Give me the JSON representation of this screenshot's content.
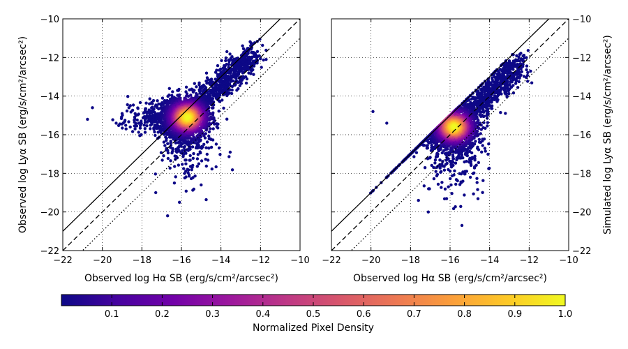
{
  "chart_data": [
    {
      "type": "scatter",
      "panel": "left",
      "xlabel": "Observed log Hα SB (erg/s/cm²/arcsec²)",
      "ylabel": "Observed log Lyα SB (erg/s/cm²/arcsec²)",
      "xlim": [
        -22,
        -10
      ],
      "ylim": [
        -22,
        -10
      ],
      "xticks": [
        -22,
        -20,
        -18,
        -16,
        -14,
        -12,
        -10
      ],
      "yticks": [
        -22,
        -20,
        -18,
        -16,
        -14,
        -12,
        -10
      ],
      "xtick_labels": [
        "−22",
        "−20",
        "−18",
        "−16",
        "−14",
        "−12",
        "−10"
      ],
      "ytick_labels": [
        "−22",
        "−20",
        "−18",
        "−16",
        "−14",
        "−12",
        "−10"
      ],
      "grid": true,
      "reference_lines": [
        {
          "style": "solid",
          "intercept": 1.0
        },
        {
          "style": "dashed",
          "intercept": 0.0
        },
        {
          "style": "dotted",
          "intercept": -1.0
        }
      ],
      "density_peak": {
        "x": -15.7,
        "y": -15.1
      },
      "outliers": [
        {
          "x": -20.5,
          "y": -14.6
        },
        {
          "x": -16.7,
          "y": -20.2
        },
        {
          "x": -16.1,
          "y": -19.5
        },
        {
          "x": -18.3,
          "y": -15.0
        },
        {
          "x": -12.8,
          "y": -12.3
        },
        {
          "x": -18.8,
          "y": -15.7
        },
        {
          "x": -17.3,
          "y": -19.0
        },
        {
          "x": -15.0,
          "y": -18.6
        }
      ]
    },
    {
      "type": "scatter",
      "panel": "right",
      "xlabel": "Observed log Hα SB (erg/s/cm²/arcsec²)",
      "ylabel": "Simulated log Lyα SB (erg/s/cm²/arcsec²)",
      "xlim": [
        -22,
        -10
      ],
      "ylim": [
        -22,
        -10
      ],
      "xticks": [
        -22,
        -20,
        -18,
        -16,
        -14,
        -12,
        -10
      ],
      "yticks": [
        -22,
        -20,
        -18,
        -16,
        -14,
        -12,
        -10
      ],
      "xtick_labels": [
        "−22",
        "−20",
        "−18",
        "−16",
        "−14",
        "−12",
        "−10"
      ],
      "ytick_labels": [
        "−22",
        "−20",
        "−18",
        "−16",
        "−14",
        "−12",
        "−10"
      ],
      "grid": true,
      "reference_lines": [
        {
          "style": "solid",
          "intercept": 1.0
        },
        {
          "style": "dashed",
          "intercept": 0.0
        },
        {
          "style": "dotted",
          "intercept": -1.0
        }
      ],
      "density_peak": {
        "x": -15.8,
        "y": -15.6
      },
      "outliers": [
        {
          "x": -19.9,
          "y": -14.8
        },
        {
          "x": -19.2,
          "y": -15.4
        },
        {
          "x": -17.1,
          "y": -20.0
        },
        {
          "x": -15.4,
          "y": -20.7
        },
        {
          "x": -12.8,
          "y": -12.4
        },
        {
          "x": -17.6,
          "y": -19.4
        }
      ]
    }
  ],
  "colorbar": {
    "label": "Normalized Pixel Density",
    "ticks": [
      0.1,
      0.2,
      0.3,
      0.4,
      0.5,
      0.6,
      0.7,
      0.8,
      0.9,
      1.0
    ],
    "tick_labels": [
      "0.1",
      "0.2",
      "0.3",
      "0.4",
      "0.5",
      "0.6",
      "0.7",
      "0.8",
      "0.9",
      "1.0"
    ],
    "range": [
      0.0,
      1.0
    ],
    "colormap": "plasma",
    "stops": [
      "#0d0887",
      "#46039f",
      "#7201a8",
      "#9c179e",
      "#bd3786",
      "#d8576b",
      "#ed7953",
      "#fb9f3a",
      "#fdca26",
      "#f0f921"
    ]
  }
}
